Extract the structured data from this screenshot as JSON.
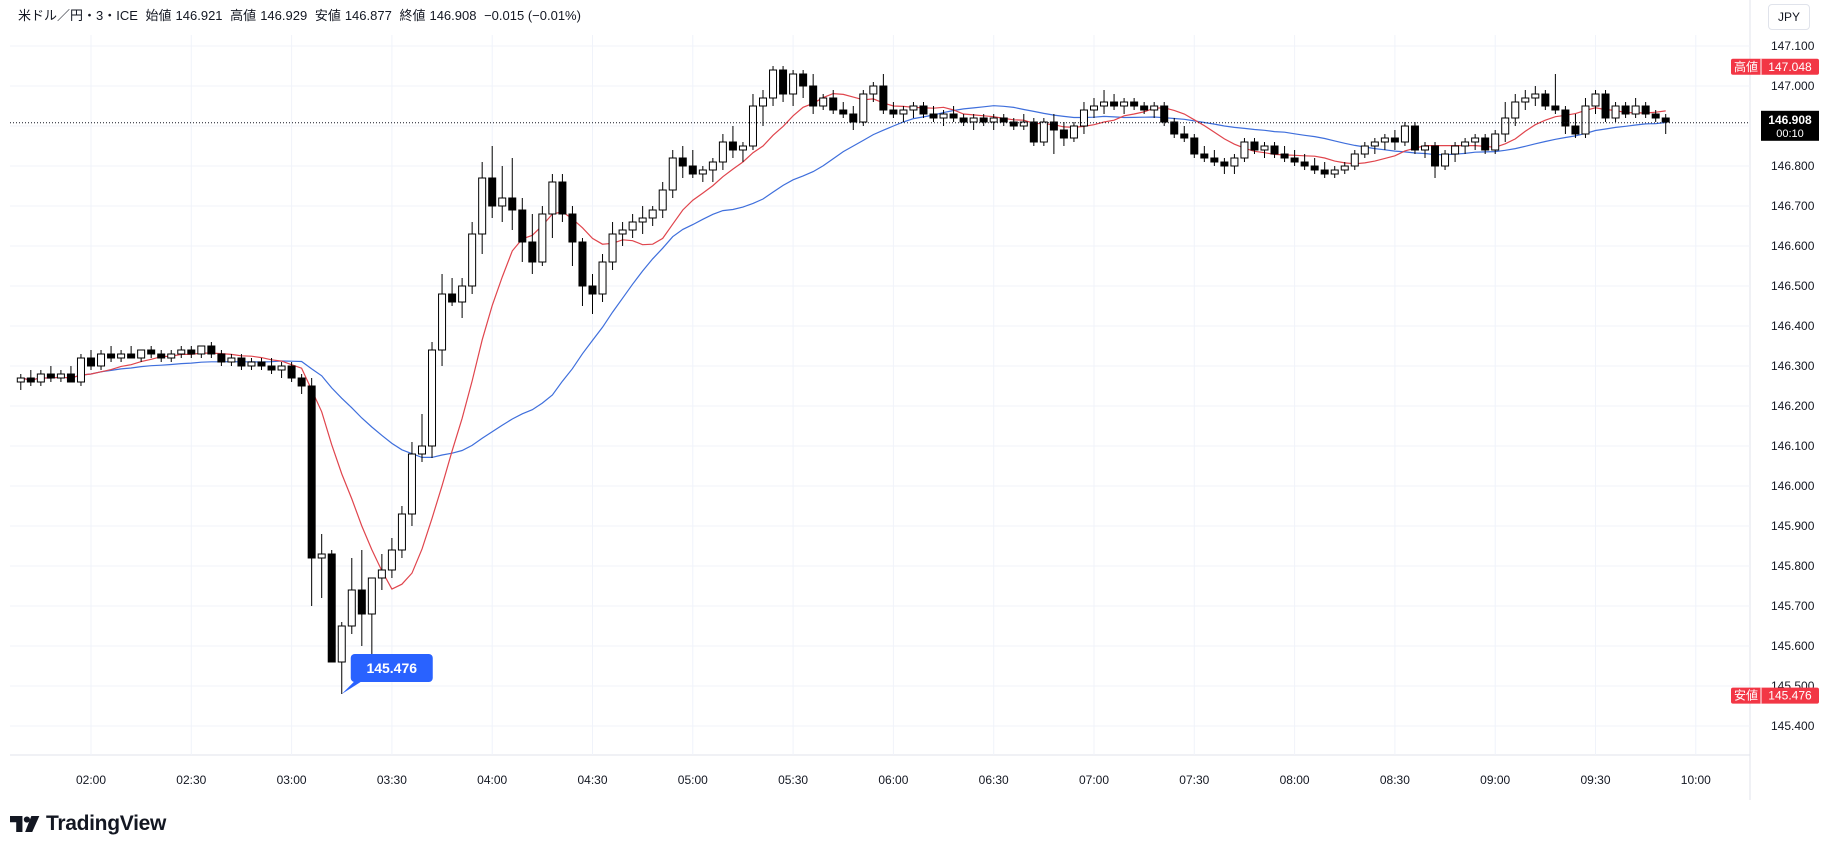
{
  "header": {
    "symbol": "米ドル／円・3・ICE",
    "open_label": "始値",
    "open": "146.921",
    "high_label": "高値",
    "high": "146.929",
    "low_label": "安値",
    "low": "146.877",
    "close_label": "終値",
    "close": "146.908",
    "change": "−0.015 (−0.01%)"
  },
  "currency_button": "JPY",
  "brand": "TradingView",
  "colors": {
    "up": "#ffffff",
    "down": "#000000",
    "ma_fast": "#e0454d",
    "ma_slow": "#3f6fdc",
    "badge": "#f23645",
    "low_callout": "#2962ff"
  },
  "chart_data": {
    "type": "candlestick",
    "timeframe": "3 minutes",
    "y_ticks": [
      "145.400",
      "145.500",
      "145.600",
      "145.700",
      "145.800",
      "145.900",
      "146.000",
      "146.100",
      "146.200",
      "146.300",
      "146.400",
      "146.500",
      "146.600",
      "146.700",
      "146.800",
      "146.900",
      "147.000",
      "147.100"
    ],
    "ylim": [
      145.35,
      147.17
    ],
    "x_ticks": [
      "02:00",
      "02:30",
      "03:00",
      "03:30",
      "04:00",
      "04:30",
      "05:00",
      "05:30",
      "06:00",
      "06:30",
      "07:00",
      "07:30",
      "08:00",
      "08:30",
      "09:00",
      "09:30",
      "10:00"
    ],
    "high_label": "高値",
    "high_value": "147.048",
    "low_label": "安値",
    "low_value": "145.476",
    "last_price": "146.908",
    "countdown": "00:10",
    "low_callout": "145.476",
    "candles": [
      [
        "01:39",
        146.26,
        146.28,
        146.24,
        146.27
      ],
      [
        "01:42",
        146.27,
        146.29,
        146.25,
        146.26
      ],
      [
        "01:45",
        146.26,
        146.29,
        146.25,
        146.28
      ],
      [
        "01:48",
        146.28,
        146.3,
        146.26,
        146.27
      ],
      [
        "01:51",
        146.27,
        146.29,
        146.26,
        146.28
      ],
      [
        "01:54",
        146.28,
        146.3,
        146.26,
        146.26
      ],
      [
        "01:57",
        146.26,
        146.33,
        146.25,
        146.32
      ],
      [
        "02:00",
        146.32,
        146.34,
        146.29,
        146.3
      ],
      [
        "02:03",
        146.3,
        146.34,
        146.29,
        146.33
      ],
      [
        "02:06",
        146.33,
        146.35,
        146.31,
        146.32
      ],
      [
        "02:09",
        146.32,
        146.34,
        146.31,
        146.33
      ],
      [
        "02:12",
        146.33,
        146.35,
        146.32,
        146.32
      ],
      [
        "02:15",
        146.32,
        146.34,
        146.31,
        146.34
      ],
      [
        "02:18",
        146.34,
        146.35,
        146.32,
        146.33
      ],
      [
        "02:21",
        146.33,
        146.34,
        146.31,
        146.32
      ],
      [
        "02:24",
        146.32,
        146.34,
        146.31,
        146.33
      ],
      [
        "02:27",
        146.33,
        146.35,
        146.32,
        146.34
      ],
      [
        "02:30",
        146.34,
        146.35,
        146.32,
        146.33
      ],
      [
        "02:33",
        146.33,
        146.35,
        146.32,
        146.35
      ],
      [
        "02:36",
        146.35,
        146.36,
        146.32,
        146.33
      ],
      [
        "02:39",
        146.33,
        146.34,
        146.3,
        146.31
      ],
      [
        "02:42",
        146.31,
        146.33,
        146.3,
        146.32
      ],
      [
        "02:45",
        146.32,
        146.33,
        146.29,
        146.3
      ],
      [
        "02:48",
        146.3,
        146.32,
        146.29,
        146.31
      ],
      [
        "02:51",
        146.31,
        146.32,
        146.29,
        146.3
      ],
      [
        "02:54",
        146.3,
        146.32,
        146.28,
        146.29
      ],
      [
        "02:57",
        146.29,
        146.31,
        146.27,
        146.3
      ],
      [
        "03:00",
        146.3,
        146.31,
        146.26,
        146.27
      ],
      [
        "03:03",
        146.27,
        146.28,
        146.23,
        146.25
      ],
      [
        "03:06",
        146.25,
        146.27,
        145.7,
        145.82
      ],
      [
        "03:09",
        145.82,
        145.88,
        145.72,
        145.83
      ],
      [
        "03:12",
        145.83,
        145.84,
        145.56,
        145.56
      ],
      [
        "03:15",
        145.56,
        145.66,
        145.48,
        145.65
      ],
      [
        "03:18",
        145.65,
        145.82,
        145.63,
        145.74
      ],
      [
        "03:21",
        145.74,
        145.84,
        145.6,
        145.68
      ],
      [
        "03:24",
        145.68,
        145.76,
        145.58,
        145.77
      ],
      [
        "03:27",
        145.77,
        145.83,
        145.74,
        145.79
      ],
      [
        "03:30",
        145.79,
        145.87,
        145.77,
        145.84
      ],
      [
        "03:33",
        145.84,
        145.95,
        145.82,
        145.93
      ],
      [
        "03:36",
        145.93,
        146.11,
        145.9,
        146.08
      ],
      [
        "03:39",
        146.08,
        146.18,
        146.06,
        146.1
      ],
      [
        "03:42",
        146.1,
        146.36,
        146.07,
        146.34
      ],
      [
        "03:45",
        146.34,
        146.53,
        146.3,
        146.48
      ],
      [
        "03:48",
        146.48,
        146.52,
        146.45,
        146.46
      ],
      [
        "03:51",
        146.46,
        146.52,
        146.42,
        146.5
      ],
      [
        "03:54",
        146.5,
        146.66,
        146.48,
        146.63
      ],
      [
        "03:57",
        146.63,
        146.81,
        146.58,
        146.77
      ],
      [
        "04:00",
        146.77,
        146.85,
        146.67,
        146.7
      ],
      [
        "04:03",
        146.7,
        146.8,
        146.66,
        146.72
      ],
      [
        "04:06",
        146.72,
        146.82,
        146.64,
        146.69
      ],
      [
        "04:09",
        146.69,
        146.72,
        146.56,
        146.61
      ],
      [
        "04:12",
        146.61,
        146.68,
        146.53,
        146.56
      ],
      [
        "04:15",
        146.56,
        146.7,
        146.55,
        146.68
      ],
      [
        "04:18",
        146.68,
        146.78,
        146.62,
        146.76
      ],
      [
        "04:21",
        146.76,
        146.78,
        146.66,
        146.68
      ],
      [
        "04:24",
        146.68,
        146.7,
        146.55,
        146.61
      ],
      [
        "04:27",
        146.61,
        146.62,
        146.45,
        146.5
      ],
      [
        "04:30",
        146.5,
        146.53,
        146.43,
        146.48
      ],
      [
        "04:33",
        146.48,
        146.58,
        146.46,
        146.56
      ],
      [
        "04:36",
        146.56,
        146.66,
        146.54,
        146.63
      ],
      [
        "04:39",
        146.63,
        146.66,
        146.6,
        146.64
      ],
      [
        "04:42",
        146.64,
        146.68,
        146.62,
        146.66
      ],
      [
        "04:45",
        146.66,
        146.7,
        146.63,
        146.67
      ],
      [
        "04:48",
        146.67,
        146.7,
        146.65,
        146.69
      ],
      [
        "04:51",
        146.69,
        146.76,
        146.67,
        146.74
      ],
      [
        "04:54",
        146.74,
        146.84,
        146.72,
        146.82
      ],
      [
        "04:57",
        146.82,
        146.85,
        146.77,
        146.8
      ],
      [
        "05:00",
        146.8,
        146.84,
        146.77,
        146.78
      ],
      [
        "05:03",
        146.78,
        146.8,
        146.76,
        146.79
      ],
      [
        "05:06",
        146.79,
        146.82,
        146.76,
        146.81
      ],
      [
        "05:09",
        146.81,
        146.88,
        146.79,
        146.86
      ],
      [
        "05:12",
        146.86,
        146.9,
        146.82,
        146.84
      ],
      [
        "05:15",
        146.84,
        146.86,
        146.81,
        146.85
      ],
      [
        "05:18",
        146.85,
        146.98,
        146.84,
        146.95
      ],
      [
        "05:21",
        146.95,
        146.99,
        146.9,
        146.97
      ],
      [
        "05:24",
        146.97,
        147.05,
        146.95,
        147.04
      ],
      [
        "05:27",
        147.04,
        147.05,
        146.96,
        146.98
      ],
      [
        "05:30",
        146.98,
        147.04,
        146.95,
        147.03
      ],
      [
        "05:33",
        147.03,
        147.04,
        146.97,
        147.0
      ],
      [
        "05:36",
        147.0,
        147.03,
        146.93,
        146.95
      ],
      [
        "05:39",
        146.95,
        146.98,
        146.94,
        146.97
      ],
      [
        "05:42",
        146.97,
        146.99,
        146.93,
        146.94
      ],
      [
        "05:45",
        146.94,
        146.96,
        146.92,
        146.93
      ],
      [
        "05:48",
        146.93,
        146.95,
        146.89,
        146.91
      ],
      [
        "05:51",
        146.91,
        146.99,
        146.9,
        146.98
      ],
      [
        "05:54",
        146.98,
        147.01,
        146.96,
        147.0
      ],
      [
        "05:57",
        147.0,
        147.03,
        146.93,
        146.94
      ],
      [
        "06:00",
        146.94,
        146.96,
        146.92,
        146.93
      ],
      [
        "06:03",
        146.93,
        146.95,
        146.91,
        146.94
      ],
      [
        "06:06",
        146.94,
        146.96,
        146.92,
        146.95
      ],
      [
        "06:09",
        146.95,
        146.96,
        146.92,
        146.93
      ],
      [
        "06:12",
        146.93,
        146.95,
        146.91,
        146.92
      ],
      [
        "06:15",
        146.92,
        146.94,
        146.9,
        146.93
      ],
      [
        "06:18",
        146.93,
        146.95,
        146.91,
        146.92
      ],
      [
        "06:21",
        146.92,
        146.93,
        146.9,
        146.91
      ],
      [
        "06:24",
        146.91,
        146.93,
        146.89,
        146.92
      ],
      [
        "06:27",
        146.92,
        146.93,
        146.9,
        146.91
      ],
      [
        "06:30",
        146.91,
        146.93,
        146.89,
        146.92
      ],
      [
        "06:33",
        146.92,
        146.93,
        146.9,
        146.91
      ],
      [
        "06:36",
        146.91,
        146.92,
        146.89,
        146.9
      ],
      [
        "06:39",
        146.9,
        146.93,
        146.89,
        146.91
      ],
      [
        "06:42",
        146.91,
        146.92,
        146.85,
        146.86
      ],
      [
        "06:45",
        146.86,
        146.92,
        146.85,
        146.91
      ],
      [
        "06:48",
        146.91,
        146.93,
        146.83,
        146.89
      ],
      [
        "06:51",
        146.89,
        146.91,
        146.85,
        146.87
      ],
      [
        "06:54",
        146.87,
        146.91,
        146.86,
        146.9
      ],
      [
        "06:57",
        146.9,
        146.96,
        146.88,
        146.94
      ],
      [
        "07:00",
        146.94,
        146.97,
        146.92,
        146.95
      ],
      [
        "07:03",
        146.95,
        146.99,
        146.93,
        146.96
      ],
      [
        "07:06",
        146.96,
        146.98,
        146.94,
        146.95
      ],
      [
        "07:09",
        146.95,
        146.97,
        146.93,
        146.96
      ],
      [
        "07:12",
        146.96,
        146.97,
        146.94,
        146.95
      ],
      [
        "07:15",
        146.95,
        146.96,
        146.93,
        146.94
      ],
      [
        "07:18",
        146.94,
        146.96,
        146.92,
        146.95
      ],
      [
        "07:21",
        146.95,
        146.96,
        146.9,
        146.91
      ],
      [
        "07:24",
        146.91,
        146.92,
        146.87,
        146.88
      ],
      [
        "07:27",
        146.88,
        146.9,
        146.86,
        146.87
      ],
      [
        "07:30",
        146.87,
        146.88,
        146.82,
        146.83
      ],
      [
        "07:33",
        146.83,
        146.85,
        146.81,
        146.82
      ],
      [
        "07:36",
        146.82,
        146.84,
        146.8,
        146.81
      ],
      [
        "07:39",
        146.81,
        146.82,
        146.78,
        146.8
      ],
      [
        "07:42",
        146.8,
        146.83,
        146.78,
        146.82
      ],
      [
        "07:45",
        146.82,
        146.87,
        146.81,
        146.86
      ],
      [
        "07:48",
        146.86,
        146.87,
        146.83,
        146.84
      ],
      [
        "07:51",
        146.84,
        146.86,
        146.82,
        146.85
      ],
      [
        "07:54",
        146.85,
        146.86,
        146.82,
        146.83
      ],
      [
        "07:57",
        146.83,
        146.85,
        146.81,
        146.82
      ],
      [
        "08:00",
        146.82,
        146.84,
        146.8,
        146.81
      ],
      [
        "08:03",
        146.81,
        146.83,
        146.79,
        146.8
      ],
      [
        "08:06",
        146.8,
        146.82,
        146.78,
        146.79
      ],
      [
        "08:09",
        146.79,
        146.81,
        146.77,
        146.78
      ],
      [
        "08:12",
        146.78,
        146.8,
        146.77,
        146.79
      ],
      [
        "08:15",
        146.79,
        146.81,
        146.78,
        146.8
      ],
      [
        "08:18",
        146.8,
        146.84,
        146.79,
        146.83
      ],
      [
        "08:21",
        146.83,
        146.86,
        146.82,
        146.85
      ],
      [
        "08:24",
        146.85,
        146.87,
        146.83,
        146.86
      ],
      [
        "08:27",
        146.86,
        146.88,
        146.84,
        146.87
      ],
      [
        "08:30",
        146.87,
        146.89,
        146.84,
        146.86
      ],
      [
        "08:33",
        146.86,
        146.91,
        146.85,
        146.9
      ],
      [
        "08:36",
        146.9,
        146.91,
        146.83,
        146.84
      ],
      [
        "08:39",
        146.84,
        146.86,
        146.82,
        146.85
      ],
      [
        "08:42",
        146.85,
        146.86,
        146.77,
        146.8
      ],
      [
        "08:45",
        146.8,
        146.84,
        146.79,
        146.83
      ],
      [
        "08:48",
        146.83,
        146.86,
        146.81,
        146.85
      ],
      [
        "08:51",
        146.85,
        146.87,
        146.83,
        146.86
      ],
      [
        "08:54",
        146.86,
        146.88,
        146.84,
        146.87
      ],
      [
        "08:57",
        146.87,
        146.88,
        146.83,
        146.84
      ],
      [
        "09:00",
        146.84,
        146.89,
        146.83,
        146.88
      ],
      [
        "09:03",
        146.88,
        146.96,
        146.86,
        146.92
      ],
      [
        "09:06",
        146.92,
        146.98,
        146.9,
        146.96
      ],
      [
        "09:09",
        146.96,
        146.99,
        146.94,
        146.97
      ],
      [
        "09:12",
        146.97,
        147.0,
        146.95,
        146.98
      ],
      [
        "09:15",
        146.98,
        146.99,
        146.94,
        146.95
      ],
      [
        "09:18",
        146.95,
        147.03,
        146.93,
        146.94
      ],
      [
        "09:21",
        146.94,
        146.95,
        146.88,
        146.9
      ],
      [
        "09:24",
        146.9,
        146.93,
        146.87,
        146.88
      ],
      [
        "09:27",
        146.88,
        146.97,
        146.87,
        146.95
      ],
      [
        "09:30",
        146.95,
        146.99,
        146.93,
        146.98
      ],
      [
        "09:33",
        146.98,
        146.99,
        146.91,
        146.92
      ],
      [
        "09:36",
        146.92,
        146.96,
        146.91,
        146.95
      ],
      [
        "09:39",
        146.95,
        146.96,
        146.92,
        146.93
      ],
      [
        "09:42",
        146.93,
        146.97,
        146.92,
        146.95
      ],
      [
        "09:45",
        146.95,
        146.96,
        146.92,
        146.93
      ],
      [
        "09:48",
        146.93,
        146.94,
        146.91,
        146.92
      ],
      [
        "09:51",
        146.92,
        146.93,
        146.88,
        146.91
      ]
    ]
  }
}
